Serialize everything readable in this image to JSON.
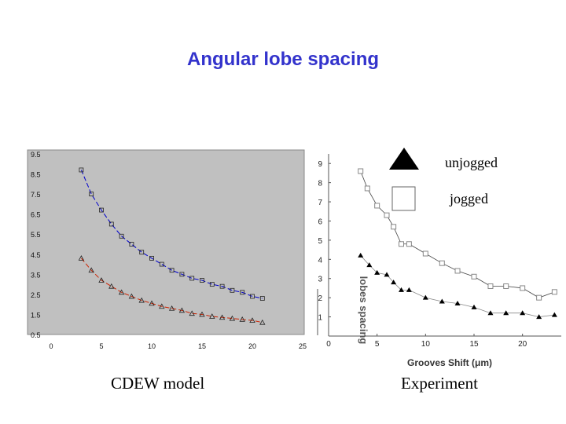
{
  "slide": {
    "title": "Angular lobe spacing",
    "left_caption": "CDEW model",
    "right_caption": "Experiment",
    "legend": {
      "unjogged": "unjogged",
      "jogged": "jogged"
    }
  },
  "colors": {
    "title": "#3333cc",
    "plot_bg": "#c0c0c0",
    "model_upper": "#0000cc",
    "model_lower": "#cc2200",
    "experiment": "#000000"
  },
  "chart_data": [
    {
      "type": "line",
      "name": "cdew-model",
      "xlim": [
        0,
        25
      ],
      "ylim": [
        0.5,
        9.5
      ],
      "x_ticks": [
        "0",
        "5",
        "10",
        "15",
        "20",
        "25"
      ],
      "y_ticks": [
        "0.5",
        "1.5",
        "2.5",
        "3.5",
        "4.5",
        "5.5",
        "6.5",
        "7.5",
        "8.5",
        "9.5"
      ],
      "grid": false,
      "series": [
        {
          "marker": "square",
          "color": "#0000cc",
          "x": [
            3,
            4,
            5,
            6,
            7,
            8,
            9,
            10,
            11,
            12,
            13,
            14,
            15,
            16,
            17,
            18,
            19,
            20,
            21
          ],
          "y": [
            8.7,
            7.5,
            6.7,
            6.0,
            5.4,
            5.0,
            4.6,
            4.3,
            4.0,
            3.7,
            3.5,
            3.3,
            3.2,
            3.0,
            2.9,
            2.7,
            2.6,
            2.4,
            2.3
          ]
        },
        {
          "marker": "triangle",
          "color": "#cc2200",
          "x": [
            3,
            4,
            5,
            6,
            7,
            8,
            9,
            10,
            11,
            12,
            13,
            14,
            15,
            16,
            17,
            18,
            19,
            20,
            21
          ],
          "y": [
            4.3,
            3.7,
            3.2,
            2.9,
            2.6,
            2.4,
            2.2,
            2.05,
            1.9,
            1.8,
            1.7,
            1.55,
            1.5,
            1.4,
            1.35,
            1.3,
            1.25,
            1.2,
            1.1
          ]
        }
      ]
    },
    {
      "type": "line",
      "name": "experiment",
      "xlabel": "Grooves Shift (μm)",
      "ylabel": "lobes spacing",
      "xlim": [
        0,
        24
      ],
      "ylim": [
        0,
        9.5
      ],
      "x_ticks": [
        "0",
        "5",
        "10",
        "15",
        "20"
      ],
      "y_ticks": [
        "1",
        "2",
        "3",
        "4",
        "5",
        "6",
        "7",
        "8",
        "9"
      ],
      "grid": false,
      "series": [
        {
          "name": "jogged",
          "marker": "open-square",
          "x": [
            3.3,
            4.0,
            5.0,
            6.0,
            6.7,
            7.5,
            8.3,
            10.0,
            11.7,
            13.3,
            15.0,
            16.7,
            18.3,
            20.0,
            21.7,
            23.3
          ],
          "y": [
            8.6,
            7.7,
            6.8,
            6.3,
            5.7,
            4.8,
            4.8,
            4.3,
            3.8,
            3.4,
            3.1,
            2.6,
            2.6,
            2.5,
            2.0,
            2.3
          ]
        },
        {
          "name": "unjogged",
          "marker": "filled-triangle",
          "x": [
            3.3,
            4.2,
            5.0,
            6.0,
            6.7,
            7.5,
            8.3,
            10.0,
            11.7,
            13.3,
            15.0,
            16.7,
            18.3,
            20.0,
            21.7,
            23.3
          ],
          "y": [
            4.2,
            3.7,
            3.3,
            3.2,
            2.8,
            2.4,
            2.4,
            2.0,
            1.8,
            1.7,
            1.5,
            1.2,
            1.2,
            1.2,
            1.0,
            1.1
          ]
        }
      ]
    }
  ]
}
